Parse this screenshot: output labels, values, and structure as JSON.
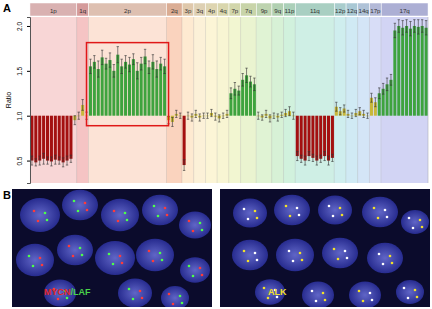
{
  "chart_data": {
    "type": "bar",
    "y_label": "Ratio",
    "ylim": [
      0.25,
      2.1
    ],
    "yticks": [
      {
        "value": 0.5,
        "label": "0.5"
      },
      {
        "value": 1.0,
        "label": "1.0"
      },
      {
        "value": 1.5,
        "label": "1.5"
      },
      {
        "value": 2.0,
        "label": "2.0"
      }
    ],
    "baseline": 1,
    "tick_labels": "y",
    "highlight": "2p",
    "series": [
      {
        "name": "1p",
        "color": "#f6c8c8",
        "values": [
          0.5,
          0.48,
          0.5,
          0.52,
          0.5,
          0.49,
          0.51,
          0.5,
          0.48,
          0.5,
          0.52,
          0.95
        ],
        "errors": [
          0.05,
          0.04,
          0.05,
          0.06,
          0.04,
          0.05,
          0.05,
          0.04,
          0.05,
          0.05,
          0.04,
          0.05
        ],
        "colors": [
          "#a31010",
          "#a31010",
          "#a31010",
          "#a31010",
          "#a31010",
          "#a31010",
          "#a31010",
          "#a31010",
          "#a31010",
          "#a31010",
          "#a31010",
          "#c8b83a"
        ]
      },
      {
        "name": "1q",
        "color": "#f1b0b0",
        "values": [
          1.0,
          1.12,
          1.0
        ],
        "errors": [
          0.04,
          0.06,
          0.04
        ],
        "colors": [
          "#c8b83a",
          "#c8b83a",
          "#c8b83a"
        ]
      },
      {
        "name": "2p",
        "color": "#fbd9c8",
        "values": [
          1.55,
          1.6,
          1.52,
          1.65,
          1.58,
          1.62,
          1.5,
          1.68,
          1.55,
          1.6,
          1.57,
          1.63,
          1.5,
          1.58,
          1.66,
          1.54,
          1.6,
          1.52,
          1.58,
          1.55
        ],
        "errors": [
          0.08,
          0.07,
          0.09,
          0.08,
          0.06,
          0.08,
          0.07,
          0.09,
          0.08,
          0.07,
          0.08,
          0.06,
          0.09,
          0.07,
          0.08,
          0.07,
          0.08,
          0.09,
          0.07,
          0.08
        ],
        "colors": [
          "#3ea33e",
          "#3ea33e",
          "#3ea33e",
          "#3ea33e",
          "#3ea33e",
          "#3ea33e",
          "#3ea33e",
          "#3ea33e",
          "#3ea33e",
          "#3ea33e",
          "#3ea33e",
          "#3ea33e",
          "#3ea33e",
          "#3ea33e",
          "#3ea33e",
          "#3ea33e",
          "#3ea33e",
          "#3ea33e",
          "#3ea33e",
          "#3ea33e"
        ]
      },
      {
        "name": "2q",
        "color": "#f8c4a8",
        "values": [
          0.95,
          0.93,
          1.02,
          1.0
        ],
        "errors": [
          0.04,
          0.05,
          0.04,
          0.03
        ],
        "colors": [
          "#c8b83a",
          "#c8b83a",
          "#c8b83a",
          "#c8b83a"
        ]
      },
      {
        "name": "3p",
        "color": "#fde3c2",
        "values": [
          0.45,
          1.0,
          0.98
        ],
        "errors": [
          0.06,
          0.04,
          0.04
        ],
        "colors": [
          "#a31010",
          "#c8b83a",
          "#c8b83a"
        ]
      },
      {
        "name": "3q",
        "color": "#fbeccb",
        "values": [
          1.02,
          0.98,
          1.0
        ],
        "errors": [
          0.04,
          0.04,
          0.03
        ],
        "colors": [
          "#c8b83a",
          "#c8b83a",
          "#c8b83a"
        ]
      },
      {
        "name": "4p",
        "color": "#fbf1c8",
        "values": [
          1.0,
          1.03,
          0.99
        ],
        "errors": [
          0.03,
          0.04,
          0.04
        ],
        "colors": [
          "#c8b83a",
          "#c8b83a",
          "#c8b83a"
        ]
      },
      {
        "name": "4q",
        "color": "#f6f2c4",
        "values": [
          0.97,
          1.0,
          1.02
        ],
        "errors": [
          0.04,
          0.03,
          0.04
        ],
        "colors": [
          "#c8b83a",
          "#c8b83a",
          "#c8b83a"
        ]
      },
      {
        "name": "7p",
        "color": "#eef3c2",
        "values": [
          1.25,
          1.3,
          1.28
        ],
        "errors": [
          0.06,
          0.07,
          0.05
        ],
        "colors": [
          "#3ea33e",
          "#3ea33e",
          "#3ea33e"
        ]
      },
      {
        "name": "7q",
        "color": "#e3f0c0",
        "values": [
          1.4,
          1.45,
          1.38,
          1.35
        ],
        "errors": [
          0.07,
          0.08,
          0.06,
          0.07
        ],
        "colors": [
          "#3ea33e",
          "#3ea33e",
          "#3ea33e",
          "#3ea33e"
        ]
      },
      {
        "name": "9p",
        "color": "#d6efc6",
        "values": [
          1.0,
          0.98,
          1.02,
          0.97
        ],
        "errors": [
          0.04,
          0.03,
          0.04,
          0.04
        ],
        "colors": [
          "#c8b83a",
          "#c8b83a",
          "#c8b83a",
          "#c8b83a"
        ]
      },
      {
        "name": "9q",
        "color": "#c9ecc8",
        "values": [
          1.0,
          0.98,
          1.01
        ],
        "errors": [
          0.03,
          0.04,
          0.03
        ],
        "colors": [
          "#c8b83a",
          "#c8b83a",
          "#c8b83a"
        ]
      },
      {
        "name": "11p",
        "color": "#c2ecd2",
        "values": [
          1.03,
          1.05,
          1.0
        ],
        "errors": [
          0.04,
          0.05,
          0.04
        ],
        "colors": [
          "#c8b83a",
          "#c8b83a",
          "#c8b83a"
        ]
      },
      {
        "name": "11q",
        "color": "#bfeadc",
        "values": [
          0.55,
          0.52,
          0.5,
          0.55,
          0.53,
          0.5,
          0.52,
          0.55,
          0.5,
          0.53
        ],
        "errors": [
          0.05,
          0.04,
          0.05,
          0.05,
          0.04,
          0.05,
          0.04,
          0.05,
          0.05,
          0.04
        ],
        "colors": [
          "#a31010",
          "#a31010",
          "#a31010",
          "#a31010",
          "#a31010",
          "#a31010",
          "#a31010",
          "#a31010",
          "#a31010",
          "#a31010"
        ]
      },
      {
        "name": "12p",
        "color": "#bfe8e8",
        "values": [
          1.1,
          1.05,
          1.08
        ],
        "errors": [
          0.05,
          0.04,
          0.04
        ],
        "colors": [
          "#c8b83a",
          "#c8b83a",
          "#c8b83a"
        ]
      },
      {
        "name": "12q",
        "color": "#c0e3f0",
        "values": [
          1.02,
          1.0,
          1.03
        ],
        "errors": [
          0.04,
          0.03,
          0.04
        ],
        "colors": [
          "#c8b83a",
          "#c8b83a",
          "#c8b83a"
        ]
      },
      {
        "name": "14q",
        "color": "#c6dcf4",
        "values": [
          1.05,
          1.02,
          1.0
        ],
        "errors": [
          0.04,
          0.04,
          0.03
        ],
        "colors": [
          "#c8b83a",
          "#c8b83a",
          "#c8b83a"
        ]
      },
      {
        "name": "17p",
        "color": "#cbd2f4",
        "values": [
          1.2,
          1.15,
          1.25
        ],
        "errors": [
          0.05,
          0.05,
          0.06
        ],
        "colors": [
          "#c8b83a",
          "#c8b83a",
          "#3ea33e"
        ]
      },
      {
        "name": "17q",
        "color": "#c3c6f0",
        "values": [
          1.3,
          1.35,
          1.4,
          1.95,
          2.0,
          1.98,
          2.0,
          1.97,
          2.0,
          1.99,
          2.0,
          1.98
        ],
        "errors": [
          0.06,
          0.07,
          0.06,
          0.08,
          0.07,
          0.08,
          0.07,
          0.08,
          0.07,
          0.08,
          0.07,
          0.08
        ],
        "colors": [
          "#3ea33e",
          "#3ea33e",
          "#3ea33e",
          "#3ea33e",
          "#3ea33e",
          "#3ea33e",
          "#3ea33e",
          "#3ea33e",
          "#3ea33e",
          "#3ea33e",
          "#3ea33e",
          "#3ea33e"
        ]
      }
    ]
  },
  "panel_labels": [
    "A",
    "B"
  ],
  "images": [
    {
      "caption": [
        {
          "text": "MYCN",
          "color": "#e02525"
        },
        {
          "text": "/LAF",
          "color": "#49d24a"
        }
      ]
    },
    {
      "caption": [
        {
          "text": "ALK",
          "color": "#f2e02a"
        }
      ]
    }
  ]
}
